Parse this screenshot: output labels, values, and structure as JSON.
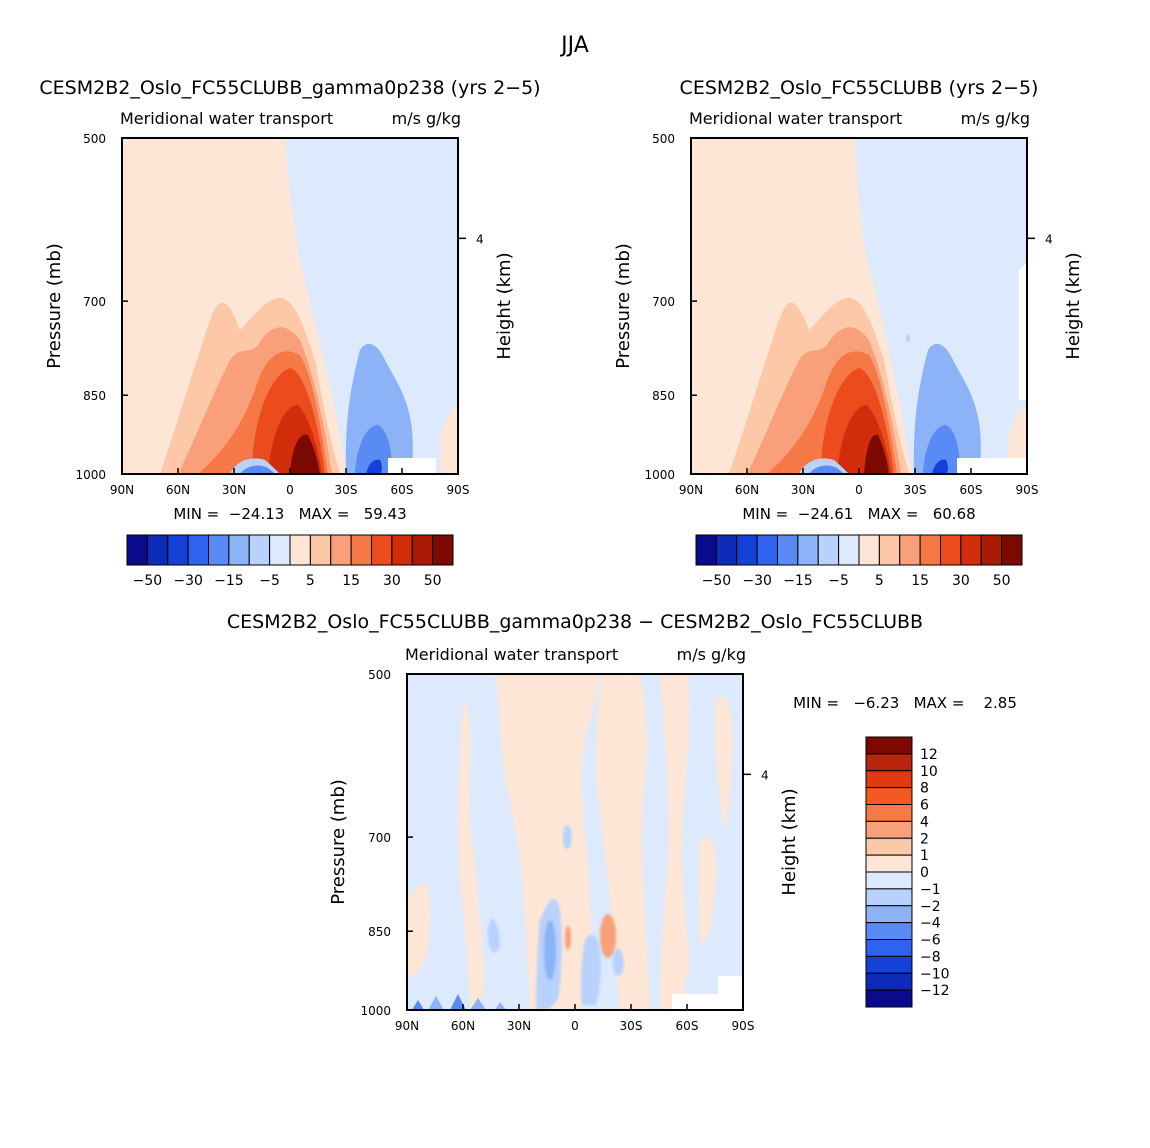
{
  "figure": {
    "title": "JJA"
  },
  "chart_data": [
    {
      "type": "heatmap",
      "title": "CESM2B2_Oslo_FC55CLUBB_gamma0p238 (yrs 2−5)",
      "subtitle_left": "Meridional water transport",
      "subtitle_right": "m/s g/kg",
      "ylabel": "Pressure (mb)",
      "y2label": "Height (km)",
      "xlim": [
        90,
        -90
      ],
      "ylim": [
        1000,
        500
      ],
      "x_ticks": [
        {
          "v": 90,
          "label": "90N"
        },
        {
          "v": 60,
          "label": "60N"
        },
        {
          "v": 30,
          "label": "30N"
        },
        {
          "v": 0,
          "label": "0"
        },
        {
          "v": -30,
          "label": "30S"
        },
        {
          "v": -60,
          "label": "60S"
        },
        {
          "v": -90,
          "label": "90S"
        }
      ],
      "y_ticks": [
        {
          "v": 500,
          "label": "500"
        },
        {
          "v": 700,
          "label": "700"
        },
        {
          "v": 850,
          "label": "850"
        },
        {
          "v": 1000,
          "label": "1000"
        }
      ],
      "y2_ticks": [
        {
          "v": 615,
          "label": "4"
        }
      ],
      "stats_text": "MIN =  −24.13   MAX =   59.43",
      "min": -24.13,
      "max": 59.43,
      "colorbar": {
        "levels": [
          "-50",
          "-30",
          "-15",
          "-5",
          "5",
          "15",
          "30",
          "50"
        ],
        "colors": [
          "#0a0a8c",
          "#0c2bb8",
          "#1442d8",
          "#2e63f0",
          "#5a8bf5",
          "#8cb2f8",
          "#b8d2fb",
          "#dde9fd",
          "#fde6d6",
          "#fcc8a8",
          "#f9a07a",
          "#f57846",
          "#ec4b1d",
          "#d12d0a",
          "#a81a04",
          "#7d0a02"
        ]
      },
      "features": [
        {
          "lat": 5,
          "lev": 985,
          "value": 59.43
        },
        {
          "lat": 12,
          "lev": 960,
          "value": 25
        },
        {
          "lat": 20,
          "lev": 985,
          "value": -24.13
        },
        {
          "lat": -37,
          "lev": 930,
          "value": -15
        }
      ]
    },
    {
      "type": "heatmap",
      "title": "CESM2B2_Oslo_FC55CLUBB (yrs 2−5)",
      "subtitle_left": "Meridional water transport",
      "subtitle_right": "m/s g/kg",
      "ylabel": "Pressure (mb)",
      "y2label": "Height (km)",
      "xlim": [
        90,
        -90
      ],
      "ylim": [
        1000,
        500
      ],
      "x_ticks": [
        {
          "v": 90,
          "label": "90N"
        },
        {
          "v": 60,
          "label": "60N"
        },
        {
          "v": 30,
          "label": "30N"
        },
        {
          "v": 0,
          "label": "0"
        },
        {
          "v": -30,
          "label": "30S"
        },
        {
          "v": -60,
          "label": "60S"
        },
        {
          "v": -90,
          "label": "90S"
        }
      ],
      "y_ticks": [
        {
          "v": 500,
          "label": "500"
        },
        {
          "v": 700,
          "label": "700"
        },
        {
          "v": 850,
          "label": "850"
        },
        {
          "v": 1000,
          "label": "1000"
        }
      ],
      "y2_ticks": [
        {
          "v": 615,
          "label": "4"
        }
      ],
      "stats_text": "MIN =  −24.61   MAX =   60.68",
      "min": -24.61,
      "max": 60.68,
      "colorbar": {
        "levels": [
          "-50",
          "-30",
          "-15",
          "-5",
          "5",
          "15",
          "30",
          "50"
        ],
        "colors": [
          "#0a0a8c",
          "#0c2bb8",
          "#1442d8",
          "#2e63f0",
          "#5a8bf5",
          "#8cb2f8",
          "#b8d2fb",
          "#dde9fd",
          "#fde6d6",
          "#fcc8a8",
          "#f9a07a",
          "#f57846",
          "#ec4b1d",
          "#d12d0a",
          "#a81a04",
          "#7d0a02"
        ]
      },
      "features": [
        {
          "lat": 5,
          "lev": 985,
          "value": 60.68
        },
        {
          "lat": 12,
          "lev": 960,
          "value": 25
        },
        {
          "lat": 20,
          "lev": 985,
          "value": -24.61
        },
        {
          "lat": -37,
          "lev": 930,
          "value": -15
        }
      ]
    },
    {
      "type": "heatmap",
      "title": "CESM2B2_Oslo_FC55CLUBB_gamma0p238 − CESM2B2_Oslo_FC55CLUBB",
      "subtitle_left": "Meridional water transport",
      "subtitle_right": "m/s g/kg",
      "ylabel": "Pressure (mb)",
      "y2label": "Height (km)",
      "xlim": [
        90,
        -90
      ],
      "ylim": [
        1000,
        500
      ],
      "x_ticks": [
        {
          "v": 90,
          "label": "90N"
        },
        {
          "v": 60,
          "label": "60N"
        },
        {
          "v": 30,
          "label": "30N"
        },
        {
          "v": 0,
          "label": "0"
        },
        {
          "v": -30,
          "label": "30S"
        },
        {
          "v": -60,
          "label": "60S"
        },
        {
          "v": -90,
          "label": "90S"
        }
      ],
      "y_ticks": [
        {
          "v": 500,
          "label": "500"
        },
        {
          "v": 700,
          "label": "700"
        },
        {
          "v": 850,
          "label": "850"
        },
        {
          "v": 1000,
          "label": "1000"
        }
      ],
      "y2_ticks": [
        {
          "v": 615,
          "label": "4"
        }
      ],
      "stats_text": "MIN =   −6.23   MAX =    2.85",
      "min": -6.23,
      "max": 2.85,
      "colorbar": {
        "levels": [
          "12",
          "10",
          "8",
          "6",
          "4",
          "2",
          "1",
          "0",
          "−1",
          "−2",
          "−4",
          "−6",
          "−8",
          "−10",
          "−12"
        ],
        "colors": [
          "#7d0a02",
          "#b8250a",
          "#e03a10",
          "#f25a22",
          "#f57a48",
          "#f8a07a",
          "#fbc8a8",
          "#fde6d6",
          "#dde9fd",
          "#b8d2fb",
          "#8cb2f8",
          "#5a8bf5",
          "#2e63f0",
          "#1442d8",
          "#0c2bb8",
          "#0a0a8c"
        ]
      }
    }
  ]
}
